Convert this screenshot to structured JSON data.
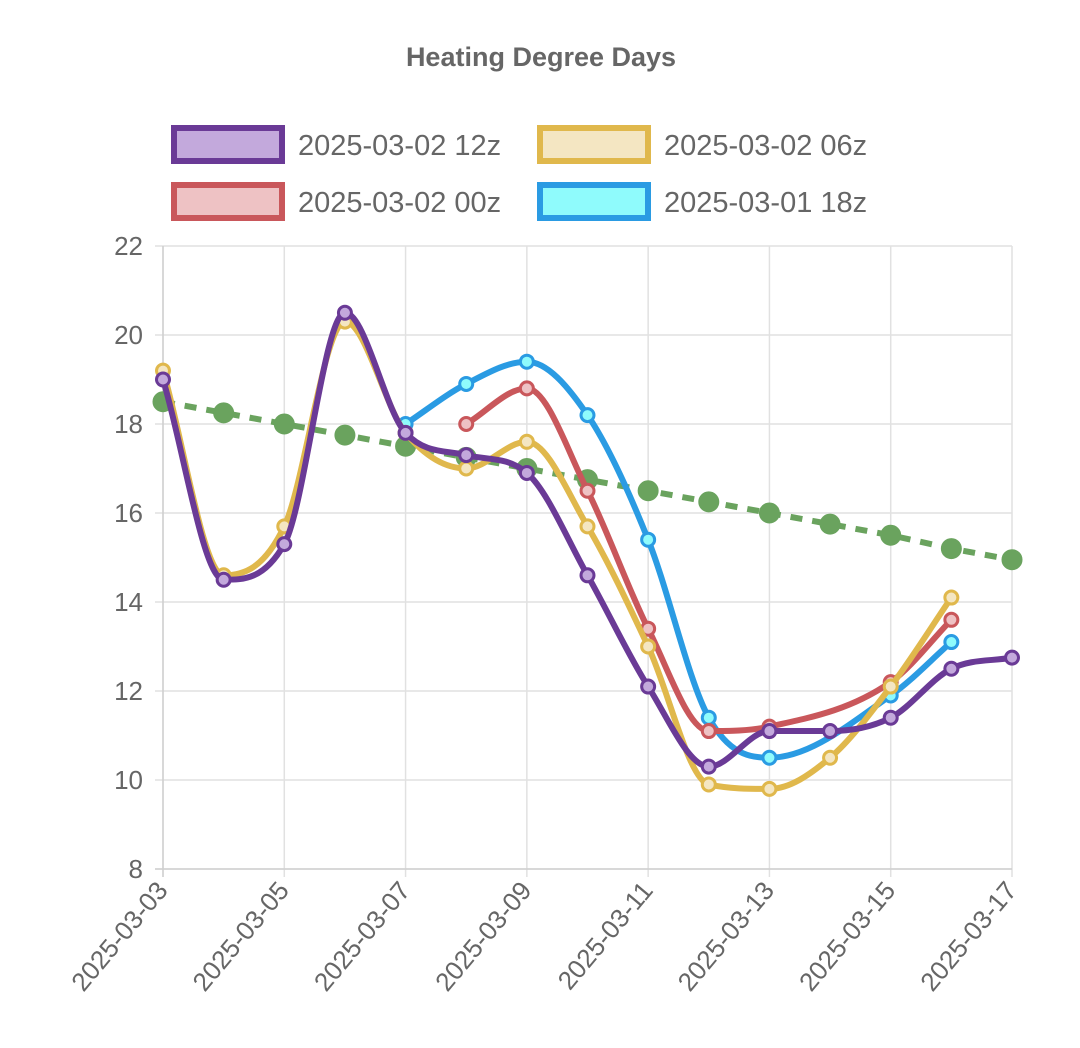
{
  "chart_data": {
    "type": "line",
    "title": "Heating Degree Days",
    "xlabel": "",
    "ylabel": "",
    "ylim": [
      8,
      22
    ],
    "y_ticks": [
      8,
      10,
      12,
      14,
      16,
      18,
      20,
      22
    ],
    "x_ticks": [
      "2025-03-03",
      "2025-03-05",
      "2025-03-07",
      "2025-03-09",
      "2025-03-11",
      "2025-03-13",
      "2025-03-15",
      "2025-03-17"
    ],
    "x": [
      "2025-03-03",
      "2025-03-04",
      "2025-03-05",
      "2025-03-06",
      "2025-03-07",
      "2025-03-08",
      "2025-03-09",
      "2025-03-10",
      "2025-03-11",
      "2025-03-12",
      "2025-03-13",
      "2025-03-14",
      "2025-03-15",
      "2025-03-16",
      "2025-03-17"
    ],
    "grid": true,
    "legend_position": "top",
    "series": [
      {
        "name": "2025-03-02 12z",
        "color": "#6a3a96",
        "fill": "#c3a9dc",
        "values": [
          19.0,
          14.5,
          15.3,
          20.5,
          17.8,
          17.3,
          16.9,
          14.6,
          12.1,
          10.3,
          11.1,
          11.1,
          11.4,
          12.5,
          12.75
        ]
      },
      {
        "name": "2025-03-02 06z",
        "color": "#e0b84c",
        "fill": "#f4e6c2",
        "values": [
          19.2,
          14.6,
          15.7,
          20.3,
          17.8,
          17.0,
          17.6,
          15.7,
          13.0,
          9.9,
          9.8,
          10.5,
          12.1,
          14.1,
          null
        ]
      },
      {
        "name": "2025-03-02 00z",
        "color": "#c9575b",
        "fill": "#eec2c4",
        "values": [
          null,
          null,
          null,
          null,
          null,
          18.0,
          18.8,
          16.5,
          13.4,
          11.1,
          11.2,
          null,
          12.2,
          13.6,
          null
        ]
      },
      {
        "name": "2025-03-01 18z",
        "color": "#2a9be3",
        "fill": "#8ffbfc",
        "values": [
          null,
          null,
          null,
          null,
          18.0,
          18.9,
          19.4,
          18.2,
          15.4,
          11.4,
          10.5,
          null,
          11.9,
          13.1,
          null
        ]
      },
      {
        "name": "",
        "color": "#6aa35e",
        "fill": "#6aa35e",
        "dashed": true,
        "values": [
          18.5,
          18.25,
          18.0,
          17.75,
          17.5,
          17.25,
          17.0,
          16.75,
          16.5,
          16.25,
          16.0,
          15.75,
          15.5,
          15.2,
          14.95
        ]
      }
    ]
  }
}
